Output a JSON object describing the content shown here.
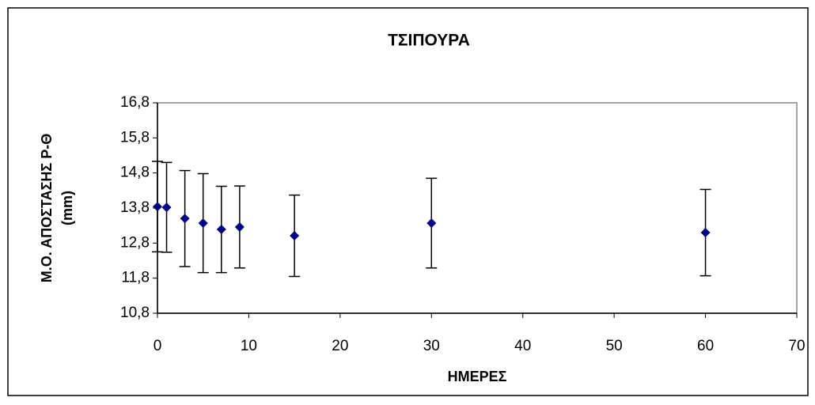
{
  "chart_data": {
    "type": "scatter",
    "title": "ΤΣΙΠΟΥΡΑ",
    "xlabel": "ΗΜΕΡΕΣ",
    "ylabel": [
      "Μ.Ο. ΑΠΟΣΤΑΣΗΣ Ρ-Θ",
      "(mm)"
    ],
    "x": [
      0,
      1,
      3,
      5,
      7,
      9,
      15,
      30,
      60
    ],
    "values": [
      13.84,
      13.82,
      13.5,
      13.37,
      13.19,
      13.26,
      13.01,
      13.37,
      13.1
    ],
    "errors": [
      1.29,
      1.28,
      1.37,
      1.41,
      1.23,
      1.17,
      1.16,
      1.28,
      1.23
    ],
    "color": "#000080",
    "xlim": [
      0,
      70
    ],
    "xticks": [
      0,
      10,
      20,
      30,
      40,
      50,
      60,
      70
    ],
    "ylim": [
      10.8,
      16.8
    ],
    "yticks": [
      {
        "value": 10.8,
        "label": "10,8"
      },
      {
        "value": 11.8,
        "label": "11,8"
      },
      {
        "value": 12.8,
        "label": "12,8"
      },
      {
        "value": 13.8,
        "label": "13,8"
      },
      {
        "value": 14.8,
        "label": "14,8"
      },
      {
        "value": 15.8,
        "label": "15,8"
      },
      {
        "value": 16.8,
        "label": "16,8"
      }
    ]
  }
}
